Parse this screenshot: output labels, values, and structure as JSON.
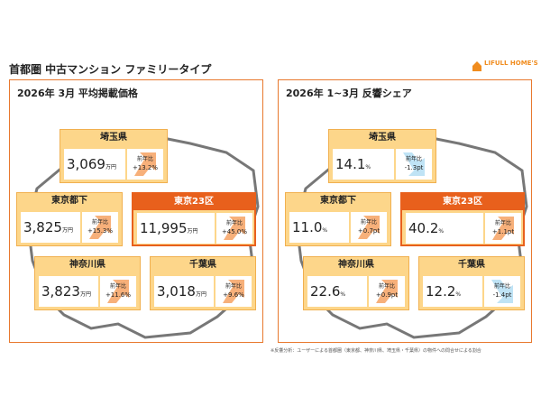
{
  "header": {
    "title": "首都圏 中古マンション ファミリータイプ",
    "logo": "LIFULL HOME'S"
  },
  "panels": [
    {
      "title": "2026年 3月 平均掲載価格",
      "regions": [
        {
          "name": "埼玉県",
          "value": "3,069",
          "unit": "万円",
          "yoy_label": "前年比",
          "change": "+13.2%"
        },
        {
          "name": "東京都下",
          "value": "3,825",
          "unit": "万円",
          "yoy_label": "前年比",
          "change": "+15.3%"
        },
        {
          "name": "東京23区",
          "value": "11,995",
          "unit": "万円",
          "yoy_label": "前年比",
          "change": "+45.0%"
        },
        {
          "name": "神奈川県",
          "value": "3,823",
          "unit": "万円",
          "yoy_label": "前年比",
          "change": "+11.6%"
        },
        {
          "name": "千葉県",
          "value": "3,018",
          "unit": "万円",
          "yoy_label": "前年比",
          "change": "+9.6%"
        }
      ]
    },
    {
      "title": "2026年 1~3月 反響シェア",
      "regions": [
        {
          "name": "埼玉県",
          "value": "14.1",
          "unit": "%",
          "yoy_label": "前年比",
          "change": "-1.3pt"
        },
        {
          "name": "東京都下",
          "value": "11.0",
          "unit": "%",
          "yoy_label": "前年比",
          "change": "+0.7pt"
        },
        {
          "name": "東京23区",
          "value": "40.2",
          "unit": "%",
          "yoy_label": "前年比",
          "change": "+1.1pt"
        },
        {
          "name": "神奈川県",
          "value": "22.6",
          "unit": "%",
          "yoy_label": "前年比",
          "change": "+0.9pt"
        },
        {
          "name": "千葉県",
          "value": "12.2",
          "unit": "%",
          "yoy_label": "前年比",
          "change": "-1.4pt"
        }
      ]
    }
  ],
  "footnote": "※反響分析：ユーザーによる首都圏（東京都、神奈川県、埼玉県・千葉県）の物件への問合せによる割合"
}
